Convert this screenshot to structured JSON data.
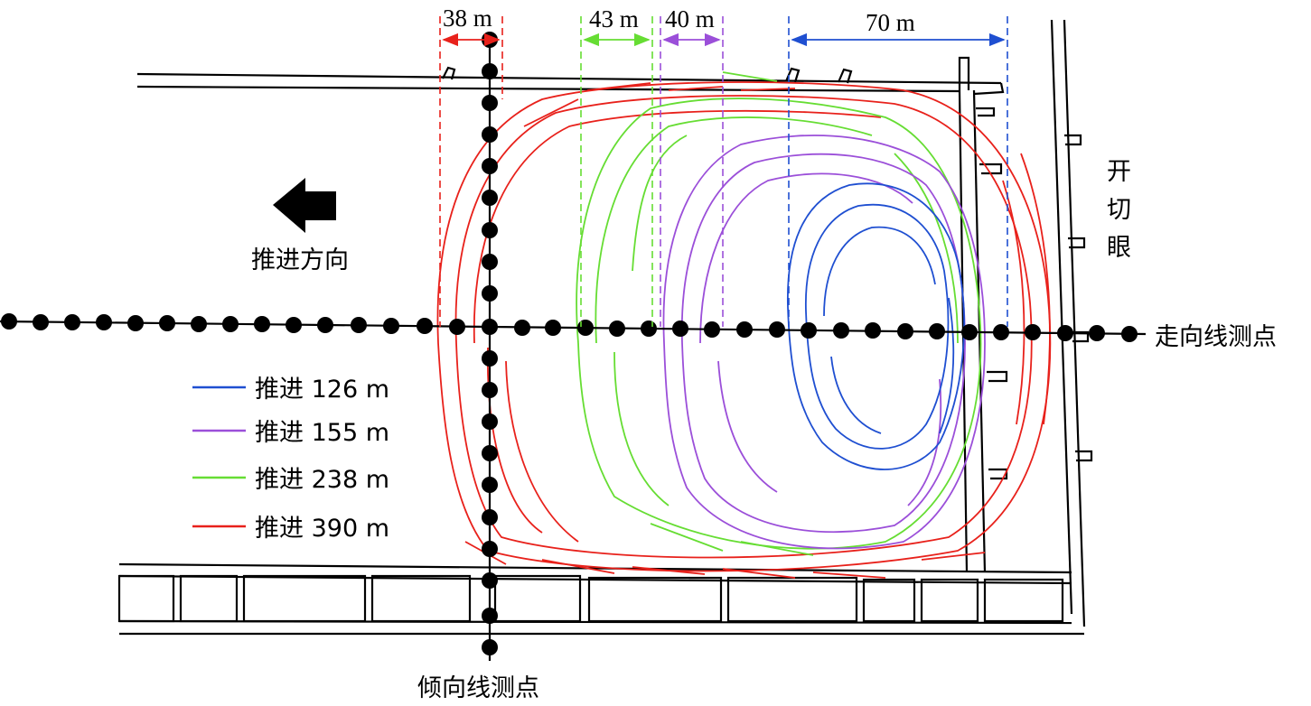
{
  "advance_direction": "推进方向",
  "cut_hole_label": [
    "开",
    "切",
    "眼"
  ],
  "strike_line_label": "走向线测点",
  "dip_line_label": "倾向线测点",
  "dimensions": [
    "38 m",
    "43 m",
    "40 m",
    "70 m"
  ],
  "legend": [
    {
      "label": "推进 126 m",
      "color": "#1f4fd1"
    },
    {
      "label": "推进 155 m",
      "color": "#9b4fd9"
    },
    {
      "label": "推进 238 m",
      "color": "#66dd33"
    },
    {
      "label": "推进 390 m",
      "color": "#e8211b"
    }
  ]
}
